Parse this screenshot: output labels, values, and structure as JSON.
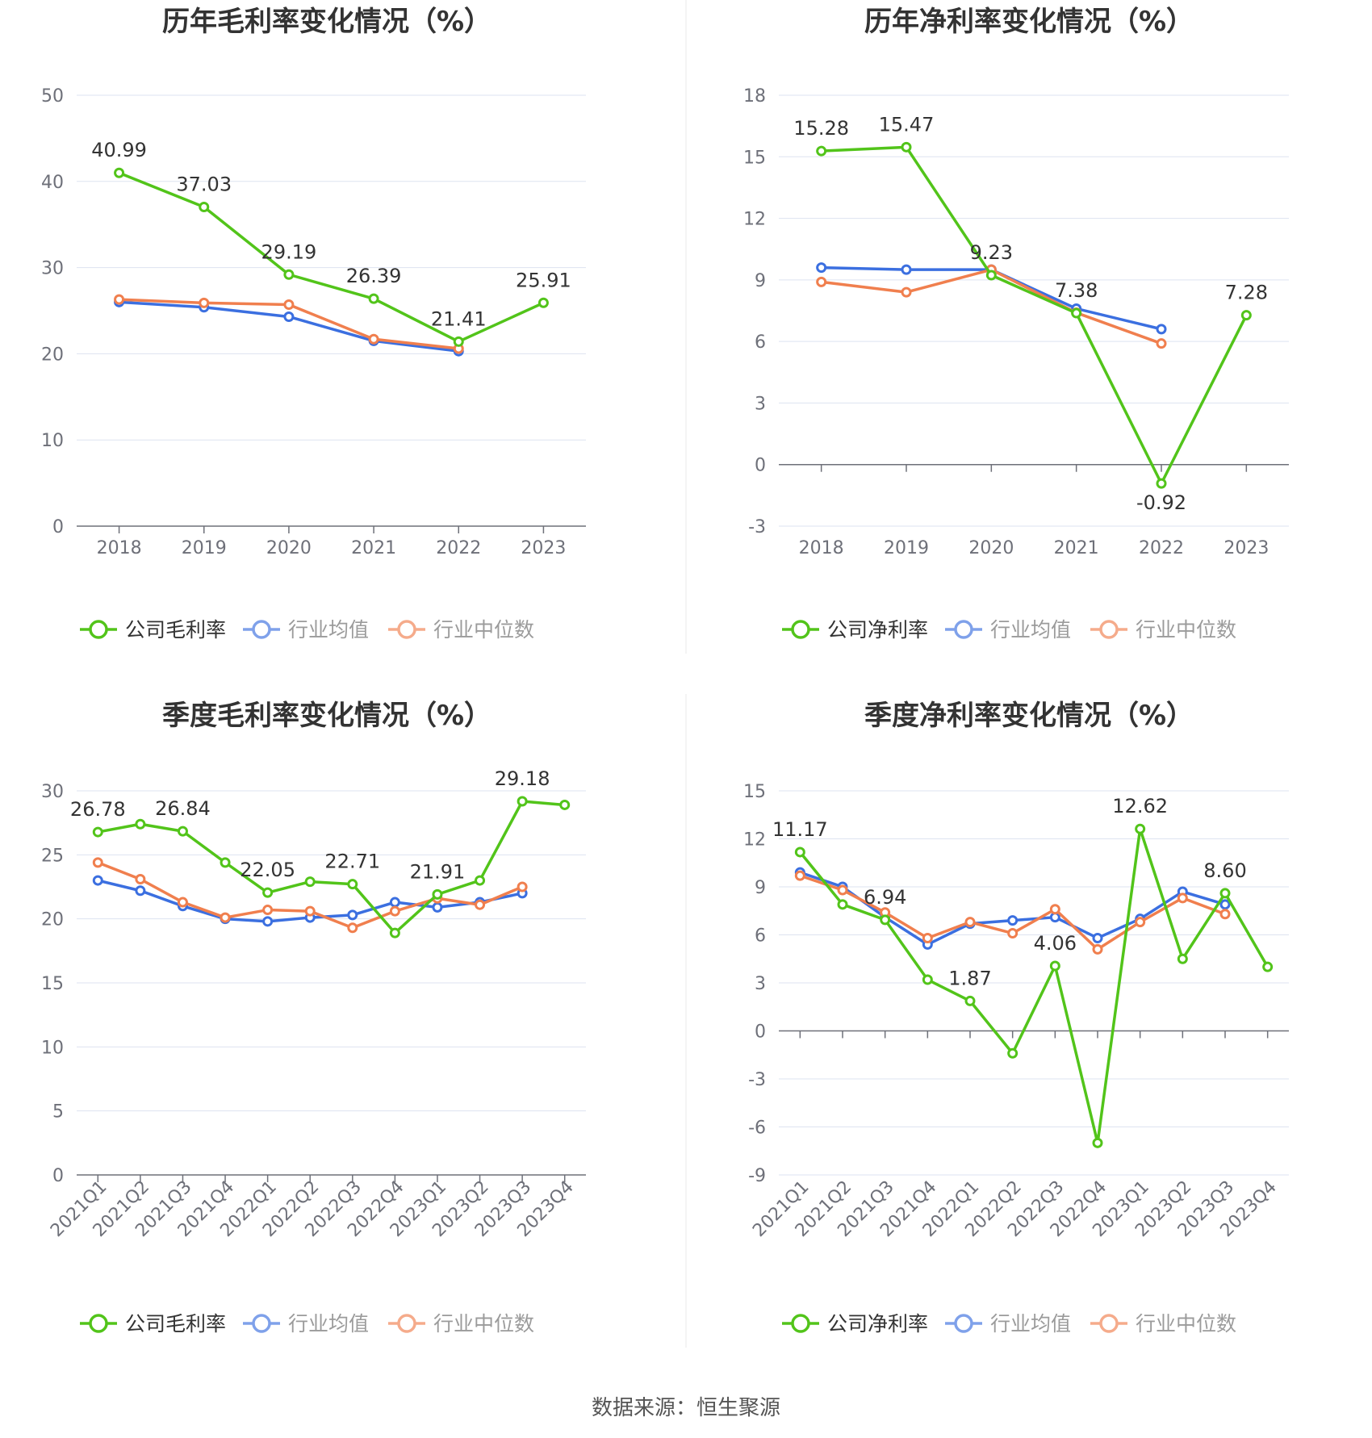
{
  "source_text": "数据来源：恒生聚源",
  "colors": {
    "company": "#52c41a",
    "industry_avg": "#3b6fe0",
    "industry_median": "#f07f4e",
    "grid": "#dde3f0",
    "axis_text": "#6e7079",
    "label_text": "#333333",
    "divider": "#e8e8e8"
  },
  "chart_data": [
    {
      "type": "line",
      "title": "历年毛利率变化情况（%）",
      "categories": [
        "2018",
        "2019",
        "2020",
        "2021",
        "2022",
        "2023"
      ],
      "ylim": [
        0,
        50
      ],
      "yticks": [
        0,
        10,
        20,
        30,
        40,
        50
      ],
      "grid": true,
      "legend_position": "bottom",
      "series": [
        {
          "name": "公司毛利率",
          "color_key": "company",
          "values": [
            40.99,
            37.03,
            29.19,
            26.39,
            21.41,
            25.91
          ]
        },
        {
          "name": "行业均值",
          "color_key": "industry_avg",
          "values": [
            26.0,
            25.4,
            24.3,
            21.5,
            20.3,
            null
          ]
        },
        {
          "name": "行业中位数",
          "color_key": "industry_median",
          "values": [
            26.3,
            25.9,
            25.7,
            21.7,
            20.6,
            null
          ]
        }
      ],
      "data_labels": [
        "40.99",
        "37.03",
        "29.19",
        "26.39",
        "21.41",
        "25.91"
      ]
    },
    {
      "type": "line",
      "title": "历年净利率变化情况（%）",
      "categories": [
        "2018",
        "2019",
        "2020",
        "2021",
        "2022",
        "2023"
      ],
      "ylim": [
        -3,
        18
      ],
      "yticks": [
        -3,
        0,
        3,
        6,
        9,
        12,
        15,
        18
      ],
      "grid": true,
      "legend_position": "bottom",
      "series": [
        {
          "name": "公司净利率",
          "color_key": "company",
          "values": [
            15.28,
            15.47,
            9.23,
            7.38,
            -0.92,
            7.28
          ]
        },
        {
          "name": "行业均值",
          "color_key": "industry_avg",
          "values": [
            9.6,
            9.5,
            9.5,
            7.6,
            6.6,
            null
          ]
        },
        {
          "name": "行业中位数",
          "color_key": "industry_median",
          "values": [
            8.9,
            8.4,
            9.5,
            7.4,
            5.9,
            null
          ]
        }
      ],
      "data_labels": [
        "15.28",
        "15.47",
        "9.23",
        "7.38",
        "-0.92",
        "7.28"
      ]
    },
    {
      "type": "line",
      "title": "季度毛利率变化情况（%）",
      "categories": [
        "2021Q1",
        "2021Q2",
        "2021Q3",
        "2021Q4",
        "2022Q1",
        "2022Q2",
        "2022Q3",
        "2022Q4",
        "2023Q1",
        "2023Q2",
        "2023Q3",
        "2023Q4"
      ],
      "ylim": [
        0,
        30
      ],
      "yticks": [
        0,
        5,
        10,
        15,
        20,
        25,
        30
      ],
      "grid": true,
      "legend_position": "bottom",
      "series": [
        {
          "name": "公司毛利率",
          "color_key": "company",
          "values": [
            26.78,
            27.4,
            26.84,
            24.4,
            22.05,
            22.9,
            22.71,
            18.9,
            21.91,
            23.0,
            29.18,
            28.9
          ]
        },
        {
          "name": "行业均值",
          "color_key": "industry_avg",
          "values": [
            23.0,
            22.2,
            21.0,
            20.0,
            19.8,
            20.1,
            20.3,
            21.3,
            20.9,
            21.3,
            22.0,
            null
          ]
        },
        {
          "name": "行业中位数",
          "color_key": "industry_median",
          "values": [
            24.4,
            23.1,
            21.3,
            20.1,
            20.7,
            20.6,
            19.3,
            20.6,
            21.6,
            21.1,
            22.5,
            null
          ]
        }
      ],
      "data_labels": [
        "26.78",
        "",
        "26.84",
        "",
        "22.05",
        "",
        "22.71",
        "",
        "21.91",
        "",
        "29.18",
        ""
      ]
    },
    {
      "type": "line",
      "title": "季度净利率变化情况（%）",
      "categories": [
        "2021Q1",
        "2021Q2",
        "2021Q3",
        "2021Q4",
        "2022Q1",
        "2022Q2",
        "2022Q3",
        "2022Q4",
        "2023Q1",
        "2023Q2",
        "2023Q3",
        "2023Q4"
      ],
      "ylim": [
        -9,
        15
      ],
      "yticks": [
        -9,
        -6,
        -3,
        0,
        3,
        6,
        9,
        12,
        15
      ],
      "grid": true,
      "legend_position": "bottom",
      "series": [
        {
          "name": "公司净利率",
          "color_key": "company",
          "values": [
            11.17,
            7.9,
            6.94,
            3.2,
            1.87,
            -1.4,
            4.06,
            -7.0,
            12.62,
            4.5,
            8.6,
            4.0
          ]
        },
        {
          "name": "行业均值",
          "color_key": "industry_avg",
          "values": [
            9.9,
            9.0,
            7.1,
            5.4,
            6.7,
            6.9,
            7.1,
            5.8,
            7.0,
            8.7,
            7.9,
            null
          ]
        },
        {
          "name": "行业中位数",
          "color_key": "industry_median",
          "values": [
            9.7,
            8.8,
            7.4,
            5.8,
            6.8,
            6.1,
            7.6,
            5.1,
            6.8,
            8.3,
            7.3,
            null
          ]
        }
      ],
      "data_labels": [
        "11.17",
        "",
        "6.94",
        "",
        "1.87",
        "",
        "4.06",
        "",
        "12.62",
        "",
        "8.60",
        ""
      ]
    }
  ]
}
